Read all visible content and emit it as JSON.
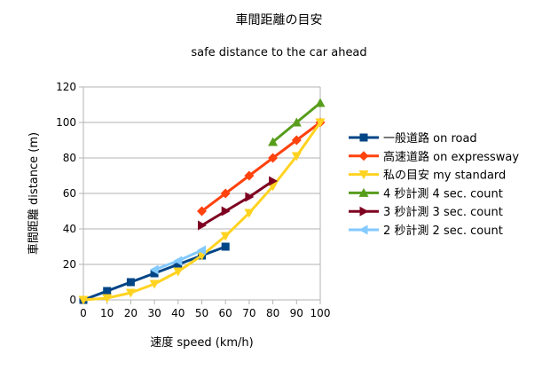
{
  "chart_data": {
    "type": "line",
    "title": "車間距離の目安",
    "subtitle": "safe distance to the car ahead",
    "xlabel": "速度  speed (km/h)",
    "ylabel": "車間距離  distance (m)",
    "xlim": [
      0,
      100
    ],
    "ylim": [
      0,
      120
    ],
    "xticks": [
      "0",
      "10",
      "20",
      "30",
      "40",
      "50",
      "60",
      "70",
      "80",
      "90",
      "100"
    ],
    "yticks": [
      "0",
      "20",
      "40",
      "60",
      "80",
      "100",
      "120"
    ],
    "grid": true,
    "legend_position": "right",
    "series": [
      {
        "name": "一般道路  on road",
        "color": "#004586",
        "marker": "square",
        "x": [
          0,
          10,
          20,
          30,
          40,
          50,
          60
        ],
        "y": [
          0,
          5,
          10,
          15,
          20,
          25,
          30
        ]
      },
      {
        "name": "高速道路  on expressway",
        "color": "#ff420e",
        "marker": "diamond",
        "x": [
          50,
          60,
          70,
          80,
          90,
          100
        ],
        "y": [
          50,
          60,
          70,
          80,
          90,
          100
        ]
      },
      {
        "name": "私の目安  my standard",
        "color": "#ffd320",
        "marker": "triangle-down",
        "x": [
          0,
          10,
          20,
          30,
          40,
          50,
          60,
          70,
          80,
          90,
          100
        ],
        "y": [
          0,
          1,
          4,
          9,
          16,
          25,
          36,
          49,
          64,
          81,
          100
        ]
      },
      {
        "name": "4 秒計測  4 sec. count",
        "color": "#579d1c",
        "marker": "triangle-up",
        "x": [
          80,
          90,
          100
        ],
        "y": [
          89,
          100,
          111
        ]
      },
      {
        "name": "3 秒計測  3 sec. count",
        "color": "#7e0021",
        "marker": "triangle-right",
        "x": [
          50,
          60,
          70,
          80
        ],
        "y": [
          42,
          50,
          58,
          67
        ]
      },
      {
        "name": "2 秒計測  2 sec. count",
        "color": "#83caff",
        "marker": "triangle-left",
        "x": [
          30,
          40,
          50
        ],
        "y": [
          17,
          22,
          28
        ]
      }
    ]
  }
}
